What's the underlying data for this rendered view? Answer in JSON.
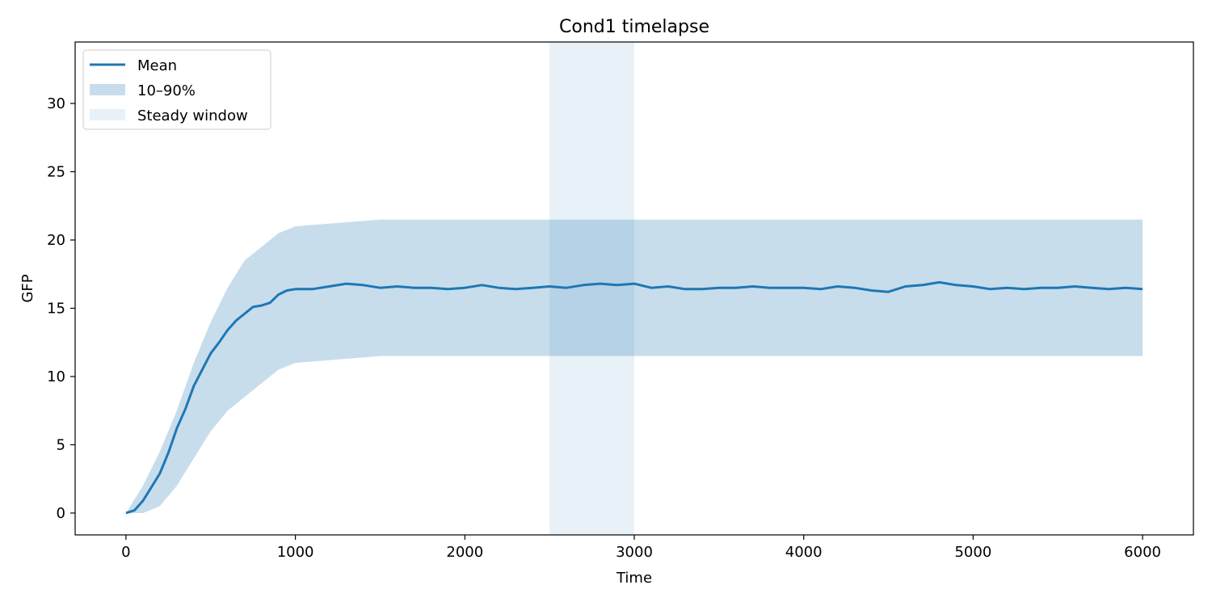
{
  "chart_data": {
    "type": "line",
    "title": "Cond1 timelapse",
    "xlabel": "Time",
    "ylabel": "GFP",
    "xlim": [
      -300,
      6300
    ],
    "ylim": [
      -1.6,
      34.5
    ],
    "xticks": [
      0,
      1000,
      2000,
      3000,
      4000,
      5000,
      6000
    ],
    "yticks": [
      0,
      5,
      10,
      15,
      20,
      25,
      30
    ],
    "grid": false,
    "legend_position": "top-left",
    "colors": {
      "mean": "#1f77b4",
      "band": "#1f77b4",
      "window": "#1f77b4"
    },
    "series": [
      {
        "name": "Mean",
        "kind": "line",
        "x": [
          0,
          50,
          100,
          150,
          200,
          250,
          300,
          350,
          400,
          450,
          500,
          550,
          600,
          650,
          700,
          750,
          800,
          850,
          900,
          950,
          1000,
          1100,
          1200,
          1300,
          1400,
          1500,
          1600,
          1700,
          1800,
          1900,
          2000,
          2100,
          2200,
          2300,
          2400,
          2500,
          2600,
          2700,
          2800,
          2900,
          3000,
          3100,
          3200,
          3300,
          3400,
          3500,
          3600,
          3700,
          3800,
          3900,
          4000,
          4100,
          4200,
          4300,
          4400,
          4500,
          4600,
          4700,
          4800,
          4900,
          5000,
          5100,
          5200,
          5300,
          5400,
          5500,
          5600,
          5700,
          5800,
          5900,
          6000
        ],
        "y": [
          0.0,
          0.2,
          0.9,
          1.9,
          2.9,
          4.4,
          6.2,
          7.6,
          9.3,
          10.5,
          11.7,
          12.5,
          13.4,
          14.1,
          14.6,
          15.1,
          15.2,
          15.4,
          16.0,
          16.3,
          16.4,
          16.4,
          16.6,
          16.8,
          16.7,
          16.5,
          16.6,
          16.5,
          16.5,
          16.4,
          16.5,
          16.7,
          16.5,
          16.4,
          16.5,
          16.6,
          16.5,
          16.7,
          16.8,
          16.7,
          16.8,
          16.5,
          16.6,
          16.4,
          16.4,
          16.5,
          16.5,
          16.6,
          16.5,
          16.5,
          16.5,
          16.4,
          16.6,
          16.5,
          16.3,
          16.2,
          16.6,
          16.7,
          16.9,
          16.7,
          16.6,
          16.4,
          16.5,
          16.4,
          16.5,
          16.5,
          16.6,
          16.5,
          16.4,
          16.5,
          16.4
        ]
      },
      {
        "name": "10–90%",
        "kind": "band",
        "x": [
          0,
          100,
          200,
          300,
          400,
          500,
          600,
          700,
          800,
          900,
          1000,
          1500,
          2000,
          2500,
          3000,
          3500,
          4000,
          4500,
          5000,
          5500,
          6000
        ],
        "lower": [
          0,
          0,
          0.5,
          2,
          4,
          6,
          7.5,
          8.5,
          9.5,
          10.5,
          11,
          11.5,
          11.5,
          11.5,
          11.5,
          11.5,
          11.5,
          11.5,
          11.5,
          11.5,
          11.5
        ],
        "upper": [
          0,
          2,
          4.5,
          7.5,
          11,
          14,
          16.5,
          18.5,
          19.5,
          20.5,
          21,
          21.5,
          21.5,
          21.5,
          21.5,
          21.5,
          21.5,
          21.5,
          21.5,
          21.5,
          21.5
        ]
      }
    ],
    "shaded_regions": [
      {
        "name": "Steady window",
        "x": [
          2500,
          3000
        ]
      }
    ],
    "legend": [
      "Mean",
      "10–90%",
      "Steady window"
    ]
  }
}
